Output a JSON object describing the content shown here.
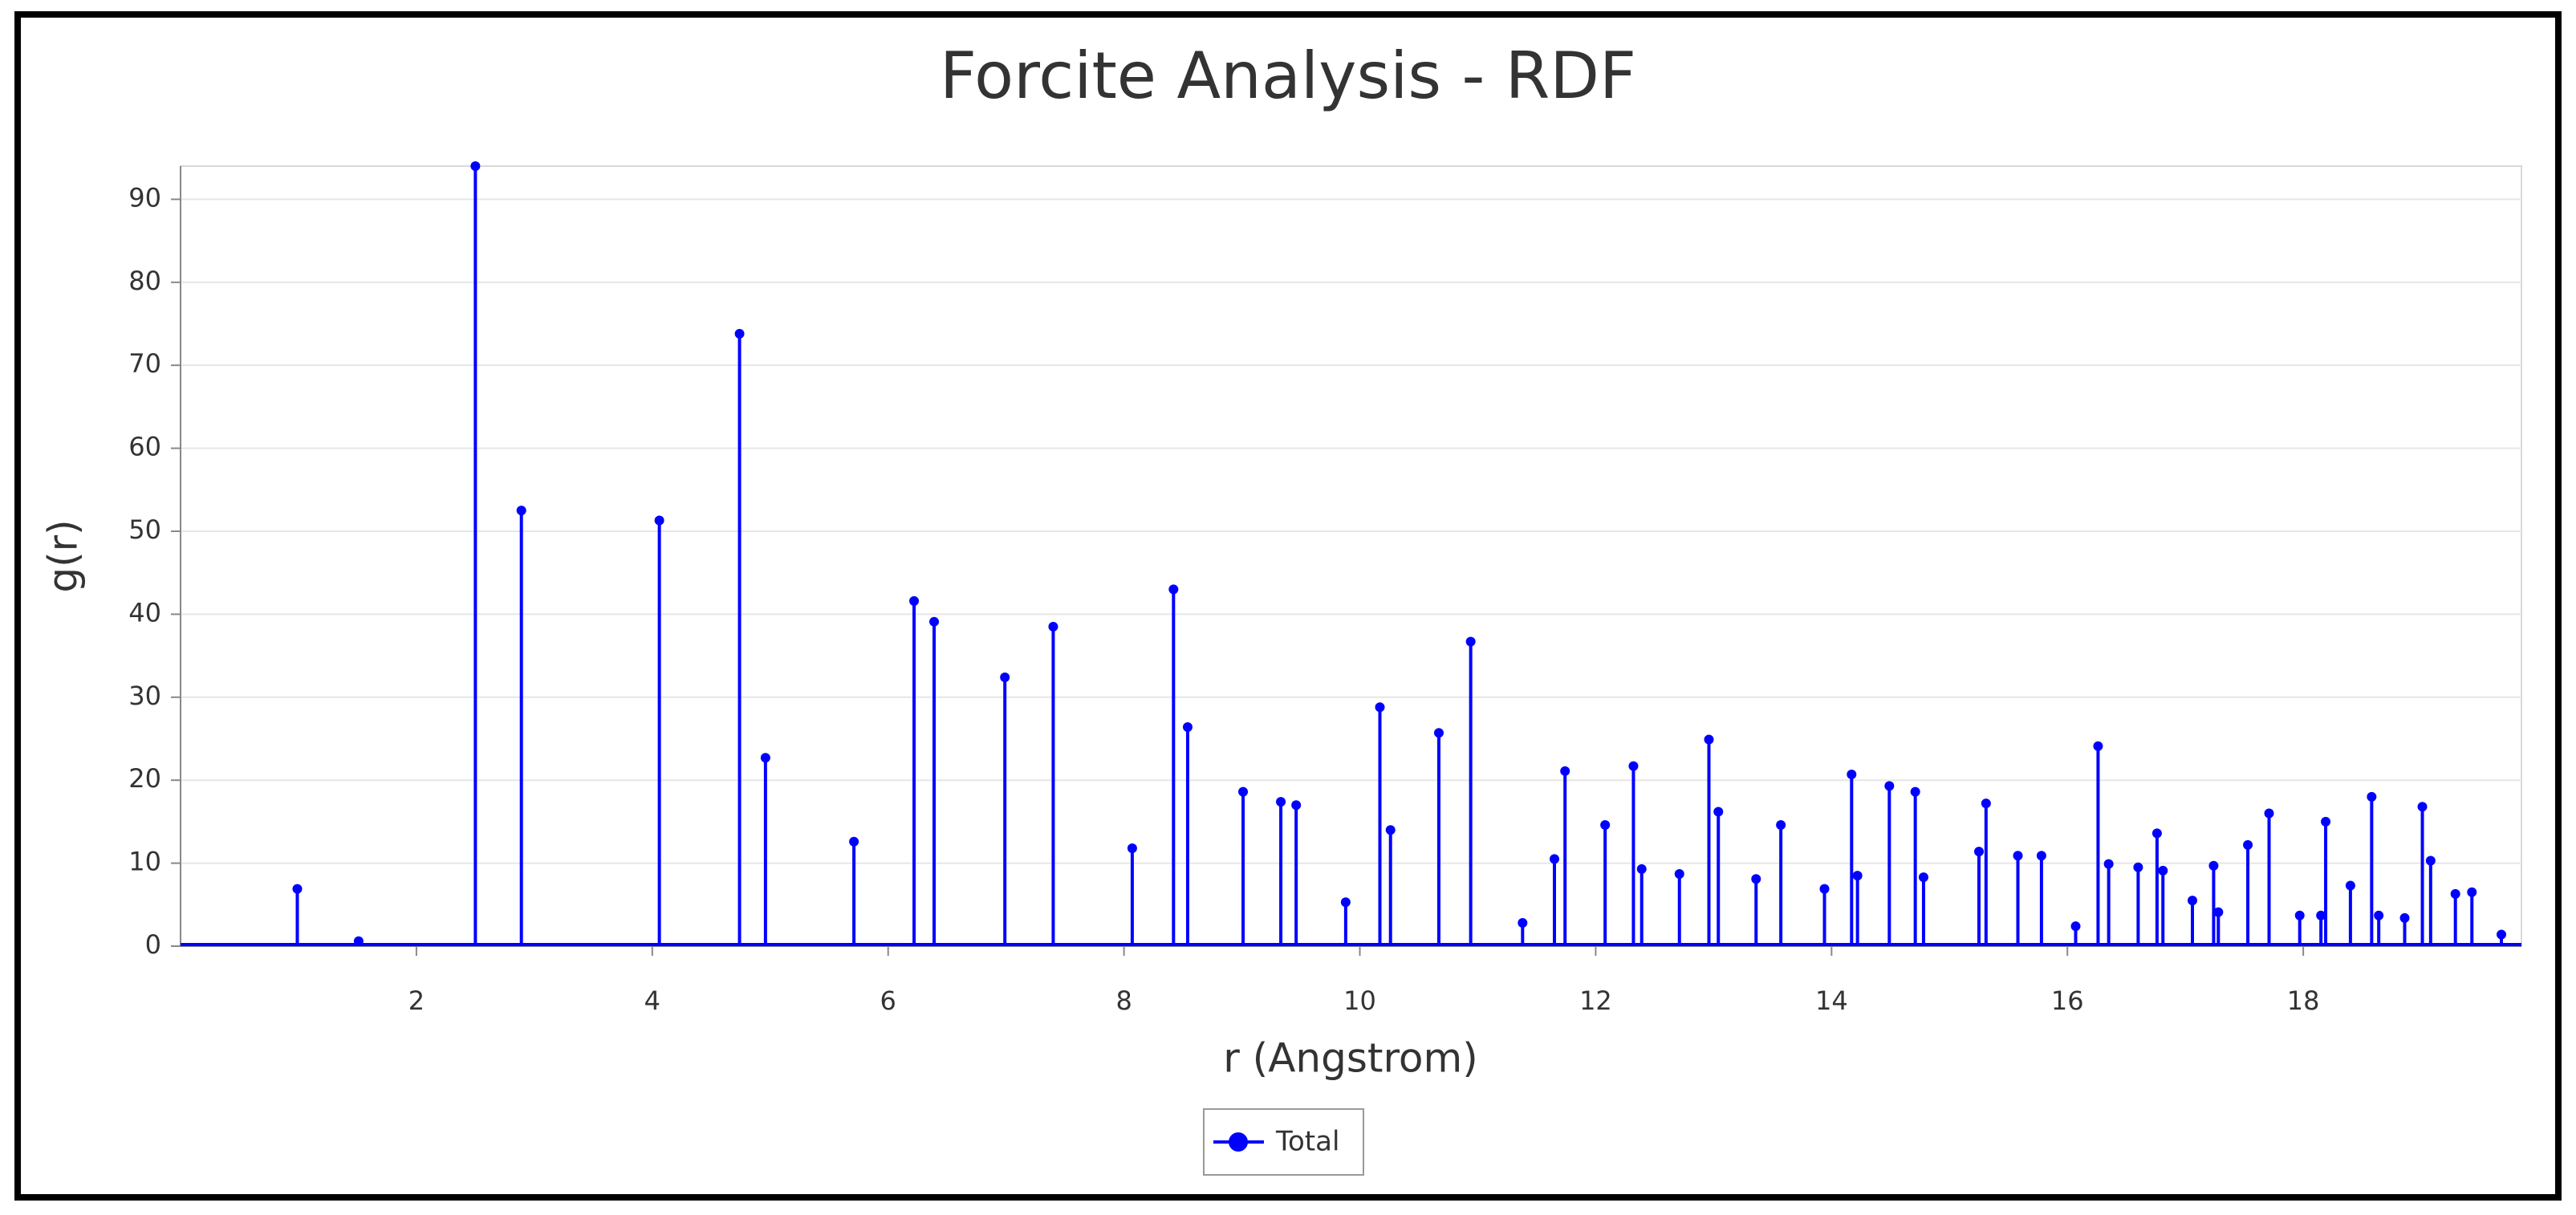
{
  "chart_data": {
    "type": "stem",
    "title": "Forcite Analysis - RDF",
    "x_label": "r (Angstrom)",
    "y_label": "g(r)",
    "x": [
      0.99,
      1.51,
      2.5,
      2.89,
      4.06,
      4.74,
      4.96,
      5.71,
      6.22,
      6.39,
      6.99,
      7.4,
      8.07,
      8.42,
      8.54,
      9.01,
      9.33,
      9.46,
      9.88,
      10.17,
      10.26,
      10.67,
      10.94,
      11.38,
      11.65,
      11.74,
      12.08,
      12.32,
      12.39,
      12.71,
      12.96,
      13.04,
      13.36,
      13.57,
      13.94,
      14.17,
      14.22,
      14.49,
      14.71,
      14.78,
      15.25,
      15.31,
      15.58,
      15.78,
      16.07,
      16.26,
      16.35,
      16.6,
      16.76,
      16.81,
      17.06,
      17.24,
      17.28,
      17.53,
      17.71,
      17.97,
      18.15,
      18.19,
      18.4,
      18.58,
      18.64,
      18.86,
      19.01,
      19.08,
      19.29,
      19.43,
      19.68
    ],
    "series": [
      {
        "name": "Total",
        "color": "#0000ff",
        "values": [
          6.9,
          0.6,
          94,
          52.5,
          51.3,
          73.8,
          22.7,
          12.6,
          41.6,
          39.1,
          32.4,
          38.5,
          11.8,
          43.0,
          26.4,
          18.6,
          17.4,
          17.0,
          5.3,
          28.8,
          14.0,
          25.7,
          36.7,
          2.8,
          10.5,
          21.1,
          14.6,
          21.7,
          9.3,
          8.7,
          24.9,
          16.2,
          8.1,
          14.6,
          6.9,
          20.7,
          8.5,
          19.3,
          18.6,
          8.3,
          11.4,
          17.2,
          10.9,
          10.9,
          2.4,
          24.1,
          9.9,
          9.5,
          13.6,
          9.1,
          5.5,
          9.7,
          4.1,
          12.2,
          16.0,
          3.7,
          3.7,
          15.0,
          7.3,
          18.0,
          3.7,
          3.4,
          16.8,
          10.3,
          6.3,
          6.5,
          1.4
        ]
      }
    ],
    "xlim": [
      0,
      19.85
    ],
    "xticks": [
      2,
      4,
      6,
      8,
      10,
      12,
      14,
      16,
      18
    ],
    "ylim": [
      0,
      94
    ],
    "yticks": [
      0,
      10,
      20,
      30,
      40,
      50,
      60,
      70,
      80,
      90
    ],
    "grid": true
  }
}
